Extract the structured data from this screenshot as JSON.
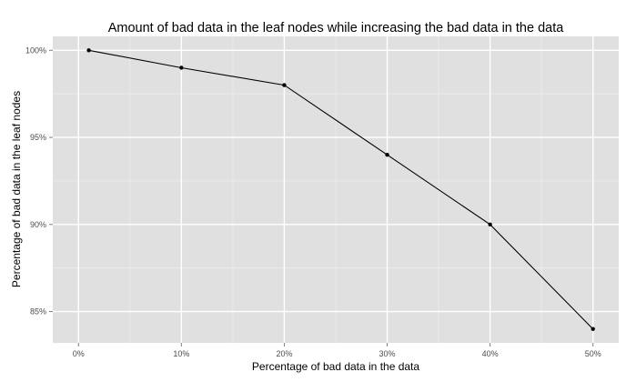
{
  "chart_data": {
    "type": "line",
    "title": "Amount of bad data in the leaf nodes while increasing the bad data in the data",
    "xlabel": "Percentage of bad data in the data",
    "ylabel": "Percentage of bad data in the leaf nodes",
    "x_ticks": [
      0,
      10,
      20,
      30,
      40,
      50
    ],
    "x_tick_labels": [
      "0%",
      "10%",
      "20%",
      "30%",
      "40%",
      "50%"
    ],
    "y_ticks": [
      85,
      90,
      95,
      100
    ],
    "y_tick_labels": [
      "85%",
      "90%",
      "95%",
      "100%"
    ],
    "xlim": [
      -2.5,
      52.5
    ],
    "ylim": [
      83.2,
      100.8
    ],
    "grid": true,
    "series": [
      {
        "x": [
          1,
          10,
          20,
          30,
          40,
          50
        ],
        "y": [
          100,
          99,
          98,
          94,
          90,
          84
        ]
      }
    ],
    "colors": {
      "panel": "#e0e0e0",
      "grid_major": "#ffffff",
      "grid_minor": "#ececec",
      "line": "#000000",
      "point": "#000000"
    }
  }
}
